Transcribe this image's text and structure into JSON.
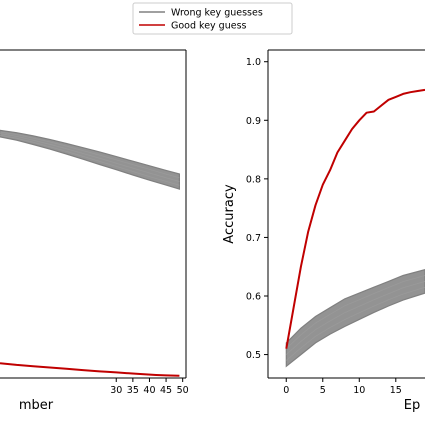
{
  "legend": {
    "placement": "top-center",
    "entries": [
      {
        "label": "Wrong key guesses",
        "color": "#808080"
      },
      {
        "label": "Good key guess",
        "color": "#c00000"
      }
    ]
  },
  "chart_data": [
    {
      "type": "line",
      "xlabel": "mber",
      "ylabel": "",
      "xlim": [
        -5,
        51
      ],
      "ylim": [
        0,
        1
      ],
      "x_ticks": [
        30,
        35,
        40,
        45,
        50
      ],
      "y_ticks": [],
      "grid": false,
      "series": [
        {
          "name": "Wrong key guesses",
          "color": "#808080",
          "band": true,
          "x": [
            -5,
            0,
            5,
            10,
            15,
            20,
            25,
            30,
            35,
            40,
            45,
            49
          ],
          "upper": [
            0.755,
            0.748,
            0.738,
            0.727,
            0.715,
            0.702,
            0.689,
            0.675,
            0.661,
            0.647,
            0.633,
            0.622
          ],
          "lower": [
            0.735,
            0.725,
            0.712,
            0.698,
            0.683,
            0.667,
            0.651,
            0.635,
            0.619,
            0.603,
            0.588,
            0.576
          ]
        },
        {
          "name": "Good key guess",
          "color": "#c00000",
          "x": [
            -5,
            0,
            5,
            10,
            15,
            20,
            25,
            27,
            30,
            33,
            36,
            39,
            42,
            45,
            49
          ],
          "y": [
            0.045,
            0.04,
            0.036,
            0.032,
            0.028,
            0.024,
            0.02,
            0.019,
            0.017,
            0.015,
            0.013,
            0.011,
            0.009,
            0.008,
            0.007
          ]
        }
      ]
    },
    {
      "type": "line",
      "xlabel": "Ep",
      "ylabel": "Accuracy",
      "xlim": [
        -2.5,
        19
      ],
      "ylim": [
        0.46,
        1.02
      ],
      "x_ticks": [
        0,
        5,
        10,
        15
      ],
      "y_ticks": [
        0.5,
        0.6,
        0.7,
        0.8,
        0.9,
        1.0
      ],
      "grid": false,
      "series": [
        {
          "name": "Wrong key guesses",
          "color": "#808080",
          "band": true,
          "x": [
            0,
            2,
            4,
            6,
            8,
            10,
            12,
            14,
            16,
            19
          ],
          "upper": [
            0.52,
            0.545,
            0.565,
            0.58,
            0.595,
            0.605,
            0.615,
            0.625,
            0.635,
            0.645
          ],
          "lower": [
            0.48,
            0.5,
            0.52,
            0.535,
            0.548,
            0.56,
            0.572,
            0.583,
            0.593,
            0.605
          ]
        },
        {
          "name": "Good key guess",
          "color": "#c00000",
          "x": [
            0,
            1,
            2,
            3,
            4,
            5,
            6,
            7,
            8,
            9,
            10,
            11,
            12,
            13,
            14,
            15,
            16,
            17,
            18,
            19
          ],
          "y": [
            0.51,
            0.58,
            0.65,
            0.71,
            0.755,
            0.79,
            0.815,
            0.845,
            0.865,
            0.885,
            0.9,
            0.913,
            0.915,
            0.925,
            0.935,
            0.94,
            0.945,
            0.948,
            0.95,
            0.952
          ]
        }
      ]
    }
  ]
}
